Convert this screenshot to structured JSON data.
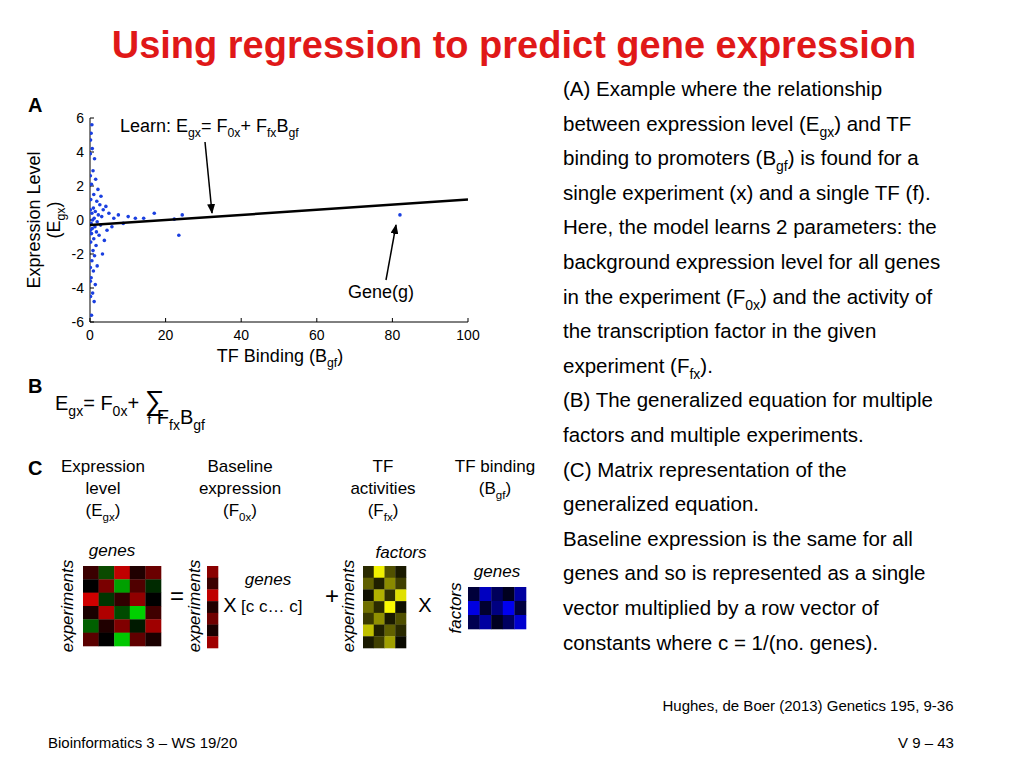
{
  "slide": {
    "title": "Using regression to predict gene expression",
    "caption": [
      [
        {
          "text": "(A) Example where the relationship"
        }
      ],
      [
        {
          "text": "between expression level (E"
        },
        {
          "sub": "gx"
        },
        {
          "text": ") and TF"
        }
      ],
      [
        {
          "text": "binding to promoters (B"
        },
        {
          "sub": "gf"
        },
        {
          "text": ") is found for a"
        }
      ],
      [
        {
          "text": "single experiment (x) and a single TF (f)."
        }
      ],
      [
        {
          "text": "Here, the model learns 2 parameters: the"
        }
      ],
      [
        {
          "text": "background expression level for all genes"
        }
      ],
      [
        {
          "text": "in the experiment (F"
        },
        {
          "sub": "0x"
        },
        {
          "text": ") and the activity of"
        }
      ],
      [
        {
          "text": "the transcription factor in the given"
        }
      ],
      [
        {
          "text": "experiment (F"
        },
        {
          "sub": "fx"
        },
        {
          "text": ")."
        }
      ],
      [
        {
          "text": "(B) The generalized equation for multiple"
        }
      ],
      [
        {
          "text": "factors and multiple experiments."
        }
      ],
      [
        {
          "text": "(C) Matrix representation of the"
        }
      ],
      [
        {
          "text": "generalized equation."
        }
      ],
      [
        {
          "text": "Baseline expression is the same for all"
        }
      ],
      [
        {
          "text": "genes and so is represented as a single"
        }
      ],
      [
        {
          "text": "vector multiplied by a row vector of"
        }
      ],
      [
        {
          "text": "constants where c = 1/(no. genes)."
        }
      ]
    ],
    "citation": "Hughes, de Boer (2013) Genetics 195, 9-36",
    "footer_left": "Bioinformatics 3 – WS 19/20",
    "footer_right": "V 9 – 43",
    "panel_letters": [
      "A",
      "B",
      "C"
    ]
  },
  "chart_data": {
    "type": "scatter",
    "xlabel": [
      {
        "text": "TF Binding (B"
      },
      {
        "sub": "gf"
      },
      {
        "text": ")"
      }
    ],
    "ylabel": [
      [
        {
          "text": "Expression Level"
        }
      ],
      [
        {
          "text": "(E"
        },
        {
          "sub": "gx"
        },
        {
          "text": ")"
        }
      ]
    ],
    "xlim": [
      0,
      100
    ],
    "xticks": [
      0,
      20,
      40,
      60,
      80,
      100
    ],
    "ylim": [
      -6,
      6
    ],
    "yticks": [
      -6,
      -4,
      -2,
      0,
      2,
      4,
      6
    ],
    "grid": false,
    "series": [
      {
        "type": "scatter",
        "color": "#1a3fe0",
        "marker": "dot",
        "x": [
          0.3,
          0.6,
          1.2,
          0.8,
          1.5,
          0.4,
          2.1,
          1.0,
          0.2,
          1.8,
          2.6,
          0.9,
          1.4,
          0.5,
          2.2,
          3.1,
          1.1,
          0.7,
          1.9,
          0.3,
          2.8,
          1.3,
          0.6,
          1.7,
          0.4,
          2.4,
          1.0,
          0.2,
          1.6,
          0.8,
          1.2,
          0.5,
          1.9,
          0.9,
          0.3,
          1.4,
          0.7,
          1.1,
          0.4,
          3.5,
          4.2,
          5.0,
          6.3,
          7.5,
          8.8,
          10.1,
          12.0,
          14.2,
          17.0,
          22.3,
          23.5,
          24.4,
          82.0,
          4.5,
          5.8,
          3.8,
          2.9,
          3.3,
          0.1,
          0.1,
          0.1,
          0.1,
          0.1,
          0.1,
          0.15,
          0.15,
          0.5
        ],
        "values": [
          5.1,
          4.2,
          3.6,
          2.9,
          2.4,
          2.1,
          1.8,
          1.5,
          1.2,
          1.1,
          0.9,
          0.7,
          0.5,
          0.4,
          0.3,
          0.2,
          0.1,
          0.0,
          -0.1,
          -0.2,
          -0.3,
          -0.4,
          -0.5,
          -0.7,
          -0.8,
          -0.9,
          -1.1,
          -1.3,
          -1.5,
          -1.8,
          -2.1,
          -2.4,
          -2.7,
          -3.0,
          -3.4,
          -3.8,
          -4.3,
          -4.8,
          -5.6,
          0.6,
          0.8,
          0.4,
          0.1,
          0.3,
          -0.2,
          0.2,
          0.1,
          0.1,
          0.4,
          0.05,
          -0.9,
          0.3,
          0.3,
          -0.6,
          -0.4,
          -1.2,
          1.4,
          -2.0,
          0.6,
          -0.6,
          2.6,
          -2.8,
          3.9,
          -3.6,
          4.7,
          -4.5,
          5.6
        ]
      },
      {
        "type": "line",
        "color": "#000000",
        "line_style": "solid",
        "x": [
          0,
          100
        ],
        "values": [
          -0.3,
          1.2
        ]
      }
    ],
    "annotations": [
      [
        {
          "text": "Learn: E"
        },
        {
          "sub": "gx"
        },
        {
          "text": "= F"
        },
        {
          "sub": "0x"
        },
        {
          "text": "+ F"
        },
        {
          "sub": "fx"
        },
        {
          "text": "B"
        },
        {
          "sub": "gf"
        }
      ],
      [
        {
          "text": "Gene(g)"
        }
      ]
    ]
  },
  "panel_b": {
    "equation": [
      {
        "text": "E"
      },
      {
        "sub": "gx"
      },
      {
        "text": "= F"
      },
      {
        "sub": "0x"
      },
      {
        "text": "+ "
      },
      {
        "sum": "∑",
        "under": "f"
      },
      {
        "text": " F"
      },
      {
        "sub": "fx"
      },
      {
        "text": "B"
      },
      {
        "sub": "gf"
      }
    ]
  },
  "panel_c": {
    "headers": [
      [
        [
          {
            "text": "Expression"
          }
        ],
        [
          {
            "text": "level"
          }
        ],
        [
          {
            "text": "(E"
          },
          {
            "sub": "gx"
          },
          {
            "text": ")"
          }
        ]
      ],
      [
        [
          {
            "text": "Baseline"
          }
        ],
        [
          {
            "text": "expression"
          }
        ],
        [
          {
            "text": "(F"
          },
          {
            "sub": "0x"
          },
          {
            "text": ")"
          }
        ]
      ],
      [
        [
          {
            "text": "TF"
          }
        ],
        [
          {
            "text": "activities"
          }
        ],
        [
          {
            "text": "(F"
          },
          {
            "sub": "fx"
          },
          {
            "text": ")"
          }
        ]
      ],
      [
        [
          {
            "text": "TF binding"
          }
        ],
        [
          {
            "text": "(B"
          },
          {
            "sub": "gf"
          },
          {
            "text": ")"
          }
        ]
      ]
    ],
    "matrices": [
      {
        "cols_label": "genes",
        "rows_label": "experiments",
        "cells": [
          [
            "#3a0000",
            "#0a4a00",
            "#c00000",
            "#200000",
            "#6a0000"
          ],
          [
            "#000000",
            "#7a0000",
            "#00a000",
            "#500000",
            "#002a00"
          ],
          [
            "#d00000",
            "#003500",
            "#300000",
            "#900000",
            "#000000"
          ],
          [
            "#1a0000",
            "#b00000",
            "#004a00",
            "#00d000",
            "#400000"
          ],
          [
            "#006000",
            "#200000",
            "#800000",
            "#001a00",
            "#a00000"
          ],
          [
            "#5a0000",
            "#000000",
            "#00c800",
            "#600000",
            "#1a0000"
          ]
        ]
      },
      {
        "rows_label": "experiments",
        "cells": [
          [
            "#8a0000"
          ],
          [
            "#3a0000"
          ],
          [
            "#c00000"
          ],
          [
            "#200000"
          ],
          [
            "#700000"
          ],
          [
            "#1a0000"
          ],
          [
            "#a00000"
          ]
        ]
      },
      {
        "cols_label": "factors",
        "rows_label": "experiments",
        "cells": [
          [
            "#2a2a00",
            "#f0f000",
            "#505000",
            "#1a1a00"
          ],
          [
            "#606000",
            "#202000",
            "#8a8a00",
            "#404000"
          ],
          [
            "#101000",
            "#b0b000",
            "#303000",
            "#e0e000"
          ],
          [
            "#707000",
            "#2a2a00",
            "#fafa00",
            "#101000"
          ],
          [
            "#3a3a00",
            "#909000",
            "#1a1a00",
            "#505000"
          ],
          [
            "#c0c000",
            "#202000",
            "#606000",
            "#2a2a00"
          ],
          [
            "#1a1a00",
            "#404000",
            "#a0a000",
            "#0a0a00"
          ]
        ]
      },
      {
        "cols_label": "genes",
        "rows_label": "factors",
        "cells": [
          [
            "#00003a",
            "#0000c0",
            "#00005a",
            "#000020",
            "#0000a0"
          ],
          [
            "#0000e0",
            "#000030",
            "#000080",
            "#0000f0",
            "#000040"
          ],
          [
            "#000050",
            "#0000a0",
            "#000020",
            "#000060",
            "#0000d0"
          ]
        ]
      }
    ],
    "operators": [
      "=",
      "X",
      "+",
      "X"
    ],
    "row_vector": {
      "label": "genes",
      "text": "[c c… c]"
    }
  }
}
